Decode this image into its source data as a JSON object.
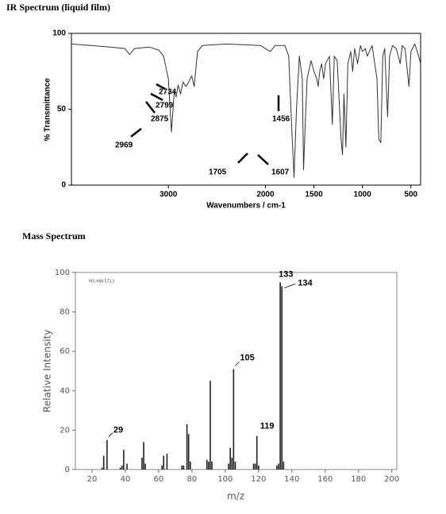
{
  "chart_data": [
    {
      "type": "line",
      "title": "IR Spectrum (liquid film)",
      "x_label": "Wavenumbers / cm-1",
      "y_label": "% Transmittance",
      "xlim": [
        4000,
        400
      ],
      "ylim": [
        0,
        100
      ],
      "xticks": [
        3000,
        2000,
        1500,
        1000,
        500
      ],
      "yticks": [
        0,
        50,
        100
      ],
      "color": "#333333",
      "x": [
        4000,
        3800,
        3600,
        3450,
        3400,
        3350,
        3200,
        3100,
        3050,
        3000,
        2969,
        2940,
        2920,
        2900,
        2875,
        2850,
        2820,
        2799,
        2760,
        2734,
        2700,
        2650,
        2400,
        2050,
        1950,
        1900,
        1800,
        1760,
        1730,
        1705,
        1680,
        1650,
        1620,
        1607,
        1590,
        1570,
        1530,
        1500,
        1470,
        1456,
        1440,
        1420,
        1400,
        1380,
        1340,
        1310,
        1290,
        1260,
        1220,
        1205,
        1190,
        1170,
        1150,
        1120,
        1100,
        1080,
        1050,
        1020,
        1000,
        970,
        950,
        900,
        850,
        830,
        810,
        790,
        770,
        740,
        720,
        690,
        650,
        610,
        590,
        560,
        520,
        500,
        460,
        420,
        400
      ],
      "values": [
        93,
        92,
        91,
        90,
        86,
        90,
        91,
        89,
        85,
        70,
        35,
        62,
        58,
        66,
        60,
        68,
        65,
        67,
        72,
        65,
        88,
        92,
        93,
        92,
        88,
        92,
        92,
        85,
        40,
        5,
        50,
        85,
        70,
        10,
        40,
        70,
        82,
        75,
        70,
        65,
        75,
        80,
        70,
        80,
        85,
        40,
        85,
        82,
        30,
        20,
        60,
        25,
        80,
        88,
        75,
        90,
        80,
        92,
        88,
        90,
        85,
        92,
        70,
        30,
        28,
        85,
        90,
        45,
        85,
        92,
        90,
        80,
        92,
        90,
        65,
        88,
        93,
        85,
        80
      ],
      "annotations": [
        "2734",
        "2799",
        "2875",
        "2969",
        "1456",
        "1705",
        "1607"
      ]
    },
    {
      "type": "bar",
      "title": "Mass Spectrum",
      "x_label": "m/z",
      "y_label": "Relative Intensity",
      "note": "MS-NW-5713",
      "xlim": [
        10,
        203
      ],
      "ylim": [
        0,
        100
      ],
      "xticks": [
        20,
        40,
        60,
        80,
        100,
        120,
        140,
        160,
        180,
        200
      ],
      "yticks": [
        0,
        20,
        40,
        60,
        80,
        100
      ],
      "color": "#222222",
      "x": [
        26,
        27,
        29,
        37,
        38,
        39,
        41,
        50,
        51,
        52,
        62,
        63,
        65,
        74,
        75,
        77,
        78,
        79,
        89,
        90,
        91,
        92,
        102,
        103,
        104,
        105,
        106,
        117,
        118,
        119,
        120,
        131,
        132,
        133,
        134,
        135
      ],
      "values": [
        1,
        7,
        15,
        1,
        2,
        10,
        3,
        6,
        14,
        3,
        2,
        7,
        8,
        2,
        2,
        23,
        18,
        4,
        5,
        4,
        45,
        4,
        3,
        11,
        6,
        51,
        4,
        3,
        3,
        17,
        2,
        2,
        3,
        95,
        93,
        4
      ],
      "annotations": [
        "29",
        "105",
        "119",
        "133",
        "134"
      ]
    }
  ]
}
